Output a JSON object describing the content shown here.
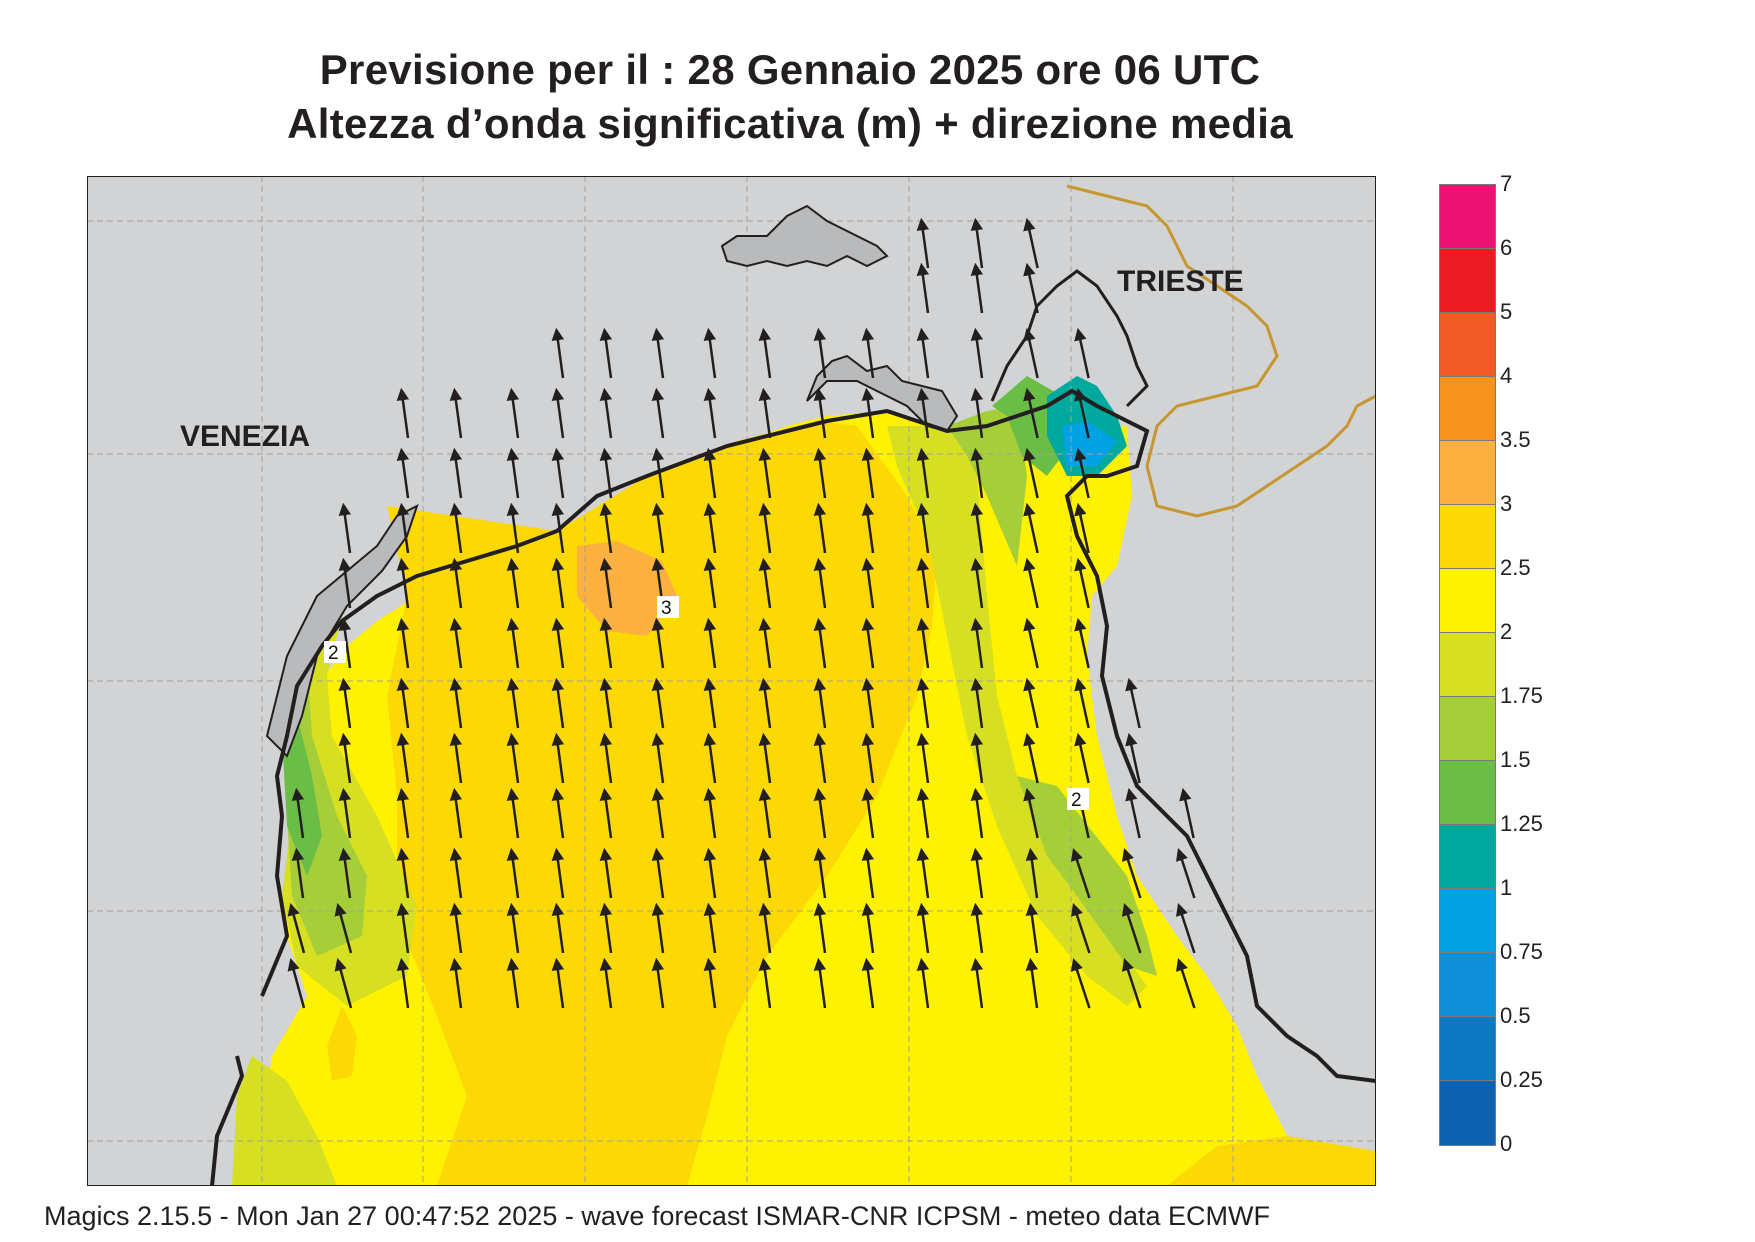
{
  "header": {
    "line1": "Previsione per il  :  28  Gennaio  2025    ore 06 UTC",
    "line2": "Altezza d’onda significativa (m) + direzione media"
  },
  "map": {
    "cities": {
      "venezia": "VENEZIA",
      "trieste": "TRIESTE"
    },
    "contour_labels": [
      "2",
      "3",
      "2"
    ],
    "arrow_direction": "north",
    "colors": {
      "land": "#d1d3d4",
      "coast": "#231f20",
      "border": "#c7962f",
      "grid": "#a7a29a"
    }
  },
  "legend": {
    "labels": [
      "7",
      "6",
      "5",
      "4",
      "3.5",
      "3",
      "2.5",
      "2",
      "1.75",
      "1.5",
      "1.25",
      "1",
      "0.75",
      "0.5",
      "0.25",
      "0"
    ],
    "colors": [
      "#ee1273",
      "#ed1c24",
      "#f15a24",
      "#f7941d",
      "#fbb040",
      "#fcd804",
      "#fff200",
      "#d7df23",
      "#a6ce39",
      "#6abd45",
      "#00a99d",
      "#00a2e4",
      "#0e8fd7",
      "#0f78c2",
      "#0a62b1"
    ]
  },
  "footer": {
    "text": "Magics 2.15.5 - Mon Jan 27 00:47:52 2025 - wave forecast  ISMAR-CNR  ICPSM - meteo data   ECMWF"
  }
}
